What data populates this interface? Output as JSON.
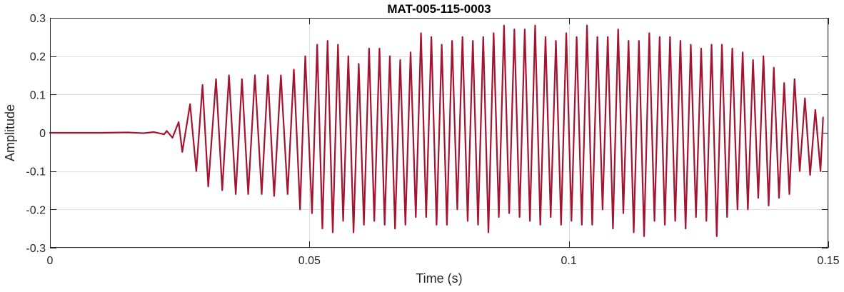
{
  "chart_data": {
    "type": "line",
    "title": "MAT-005-115-0003",
    "xlabel": "Time (s)",
    "ylabel": "Amplitude",
    "xlim": [
      0,
      0.15
    ],
    "ylim": [
      -0.3,
      0.3
    ],
    "xticks": [
      0,
      0.05,
      0.1,
      0.15
    ],
    "xtick_labels": [
      "0",
      "0.05",
      "0.1",
      "0.15"
    ],
    "yticks": [
      -0.3,
      -0.2,
      -0.1,
      0,
      0.1,
      0.2,
      0.3
    ],
    "ytick_labels": [
      "-0.3",
      "-0.2",
      "-0.1",
      "0",
      "0.1",
      "0.2",
      "0.3"
    ],
    "grid": true,
    "line_color": "#A2142F",
    "series": [
      {
        "x": [
          0,
          0.005,
          0.01,
          0.015,
          0.018,
          0.02,
          0.022,
          0.0225,
          0.0236,
          0.0248,
          0.0255,
          0.027,
          0.0282,
          0.0294,
          0.0305,
          0.032,
          0.0332,
          0.0345,
          0.0358,
          0.037,
          0.0382,
          0.0395,
          0.0408,
          0.042,
          0.0432,
          0.0445,
          0.0458,
          0.047,
          0.0482,
          0.0492,
          0.0505,
          0.0515,
          0.0525,
          0.0535,
          0.0545,
          0.0555,
          0.0565,
          0.0575,
          0.0585,
          0.0595,
          0.0605,
          0.0615,
          0.0625,
          0.0635,
          0.0645,
          0.0655,
          0.0665,
          0.0675,
          0.0685,
          0.0695,
          0.0705,
          0.0715,
          0.0725,
          0.0735,
          0.0745,
          0.0755,
          0.0765,
          0.0775,
          0.0785,
          0.0795,
          0.0805,
          0.0815,
          0.0825,
          0.0835,
          0.0845,
          0.0855,
          0.0865,
          0.0875,
          0.0885,
          0.0895,
          0.0905,
          0.0915,
          0.0925,
          0.0935,
          0.0945,
          0.0955,
          0.0965,
          0.0975,
          0.0985,
          0.0995,
          0.1005,
          0.1015,
          0.1025,
          0.1035,
          0.1045,
          0.1055,
          0.1065,
          0.1075,
          0.1085,
          0.1095,
          0.1105,
          0.1115,
          0.1125,
          0.1135,
          0.1145,
          0.1155,
          0.1165,
          0.1175,
          0.1185,
          0.1195,
          0.1205,
          0.1215,
          0.1225,
          0.1235,
          0.1245,
          0.1255,
          0.1265,
          0.1275,
          0.1285,
          0.1295,
          0.1305,
          0.1315,
          0.1325,
          0.1335,
          0.1345,
          0.1355,
          0.1365,
          0.1375,
          0.1385,
          0.1395,
          0.1405,
          0.1415,
          0.1425,
          0.1435,
          0.1445,
          0.1455,
          0.1465,
          0.1475,
          0.1485,
          0.149
        ],
        "y": [
          0,
          0,
          0,
          0.001,
          -0.001,
          0.002,
          -0.004,
          0.005,
          -0.013,
          0.028,
          -0.05,
          0.075,
          -0.1,
          0.125,
          -0.14,
          0.14,
          -0.15,
          0.15,
          -0.16,
          0.14,
          -0.16,
          0.15,
          -0.16,
          0.15,
          -0.165,
          0.15,
          -0.16,
          0.165,
          -0.2,
          0.2,
          -0.21,
          0.23,
          -0.25,
          0.24,
          -0.26,
          0.23,
          -0.23,
          0.2,
          -0.26,
          0.18,
          -0.24,
          0.22,
          -0.23,
          0.22,
          -0.24,
          0.2,
          -0.25,
          0.19,
          -0.24,
          0.21,
          -0.22,
          0.26,
          -0.22,
          0.25,
          -0.24,
          0.23,
          -0.24,
          0.24,
          -0.2,
          0.25,
          -0.23,
          0.24,
          -0.24,
          0.25,
          -0.26,
          0.26,
          -0.22,
          0.28,
          -0.21,
          0.27,
          -0.22,
          0.27,
          -0.23,
          0.28,
          -0.24,
          0.25,
          -0.22,
          0.24,
          -0.24,
          0.26,
          -0.23,
          0.25,
          -0.24,
          0.28,
          -0.24,
          0.25,
          -0.2,
          0.25,
          -0.25,
          0.27,
          -0.21,
          0.24,
          -0.26,
          0.24,
          -0.27,
          0.26,
          -0.23,
          0.25,
          -0.24,
          0.25,
          -0.23,
          0.24,
          -0.25,
          0.23,
          -0.22,
          0.22,
          -0.23,
          0.23,
          -0.27,
          0.23,
          -0.22,
          0.22,
          -0.2,
          0.21,
          -0.2,
          0.19,
          -0.17,
          0.2,
          -0.19,
          0.17,
          -0.17,
          0.13,
          -0.16,
          0.14,
          -0.1,
          0.09,
          -0.11,
          0.06,
          -0.1,
          0.04
        ]
      }
    ]
  }
}
